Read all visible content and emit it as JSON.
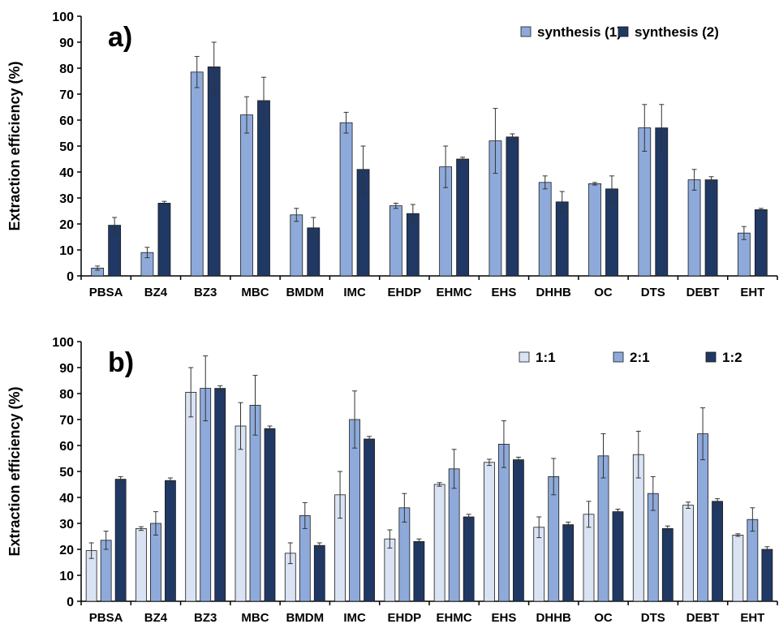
{
  "chart_data": [
    {
      "type": "bar",
      "panel_label": "a)",
      "ylabel": "Extraction efficiency (%)",
      "ylim": [
        0,
        100
      ],
      "yticks": [
        0,
        10,
        20,
        30,
        40,
        50,
        60,
        70,
        80,
        90,
        100
      ],
      "categories": [
        "PBSA",
        "BZ4",
        "BZ3",
        "MBC",
        "BMDM",
        "IMC",
        "EHDP",
        "EHMC",
        "EHS",
        "DHHB",
        "OC",
        "DTS",
        "DEBT",
        "EHT"
      ],
      "legend_position": "top-right",
      "grid": false,
      "series": [
        {
          "name": "synthesis (1)",
          "color": "#8eaadb",
          "values": [
            3,
            9,
            78.5,
            62,
            23.5,
            59,
            27,
            42,
            52,
            36,
            35.5,
            57,
            37,
            16.5
          ],
          "errors": [
            0.8,
            2,
            6,
            7,
            2.5,
            4,
            1,
            8,
            12.5,
            2.5,
            0.5,
            9,
            4,
            2.5
          ]
        },
        {
          "name": "synthesis (2)",
          "color": "#203864",
          "values": [
            19.5,
            28,
            80.5,
            67.5,
            18.5,
            41,
            24,
            45,
            53.5,
            28.5,
            33.5,
            57,
            37,
            25.5
          ],
          "errors": [
            3,
            0.7,
            9.5,
            9,
            4,
            9,
            3.5,
            0.7,
            1.2,
            4,
            5,
            9,
            1.2,
            0.5
          ]
        }
      ]
    },
    {
      "type": "bar",
      "panel_label": "b)",
      "ylabel": "Extraction efficiency (%)",
      "ylim": [
        0,
        100
      ],
      "yticks": [
        0,
        10,
        20,
        30,
        40,
        50,
        60,
        70,
        80,
        90,
        100
      ],
      "categories": [
        "PBSA",
        "BZ4",
        "BZ3",
        "MBC",
        "BMDM",
        "IMC",
        "EHDP",
        "EHMC",
        "EHS",
        "DHHB",
        "OC",
        "DTS",
        "DEBT",
        "EHT"
      ],
      "legend_position": "top-right",
      "grid": false,
      "series": [
        {
          "name": "1:1",
          "color": "#dae3f3",
          "values": [
            19.5,
            28,
            80.5,
            67.5,
            18.5,
            41,
            24,
            45,
            53.5,
            28.5,
            33.5,
            56.5,
            37,
            25.5
          ],
          "errors": [
            3,
            0.7,
            9.5,
            9,
            4,
            9,
            3.5,
            0.7,
            1.2,
            4,
            5,
            9,
            1.2,
            0.5
          ]
        },
        {
          "name": "2:1",
          "color": "#8eaadb",
          "values": [
            23.5,
            30,
            82,
            75.5,
            33,
            70,
            36,
            51,
            60.5,
            48,
            56,
            41.5,
            64.5,
            31.5
          ],
          "errors": [
            3.5,
            4.5,
            12.5,
            11.5,
            5,
            11,
            5.5,
            7.5,
            9,
            7,
            8.5,
            6.5,
            10,
            4.5
          ]
        },
        {
          "name": "1:2",
          "color": "#203864",
          "values": [
            47,
            46.5,
            82,
            66.5,
            21.5,
            62.5,
            23,
            32.5,
            54.5,
            29.5,
            34.5,
            28,
            38.5,
            20
          ],
          "errors": [
            1,
            1,
            1,
            1,
            1,
            1,
            1,
            1,
            1,
            1,
            1,
            1,
            1,
            1
          ]
        }
      ]
    }
  ]
}
